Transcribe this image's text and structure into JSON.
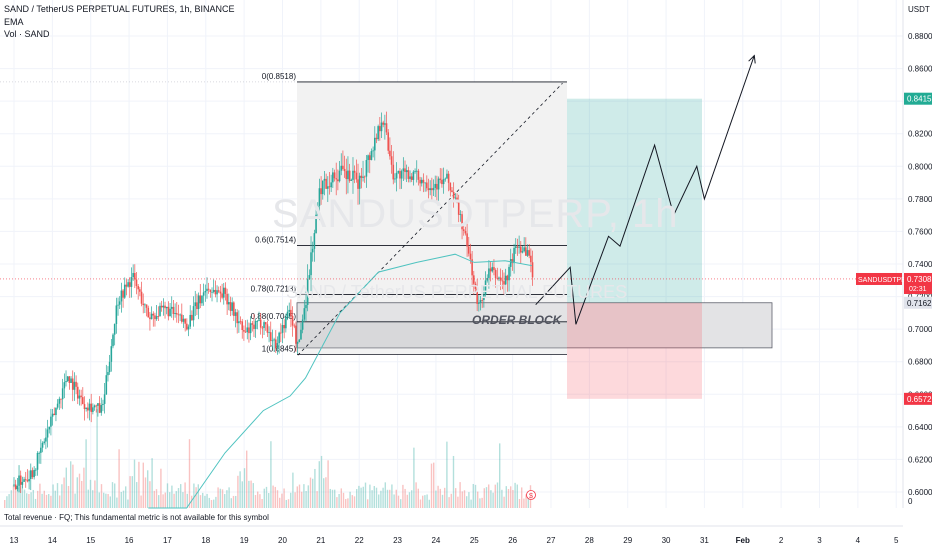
{
  "header": {
    "symbol_line": "SAND / TetherUS PERPETUAL FUTURES, 1h, BINANCE",
    "indicator_1": "EMA",
    "indicator_2": "Vol · SAND"
  },
  "watermark": {
    "ticker": "SANDUSDTPERP, 1h",
    "name": "SAND / TetherUS PERPETUAL FUTURES"
  },
  "footer_note": "Total revenue · FQ; This fundamental metric is not available for this symbol",
  "colors": {
    "up": "#26a69a",
    "down": "#ef5350",
    "ema": "#4fc3c0",
    "price_tag": "#f23645",
    "target_tag": "#22ab94",
    "stop_tag": "#f23645"
  },
  "price_axis": {
    "unit": "USDT",
    "ticks": [
      "0.8800",
      "0.8600",
      "0.8400",
      "0.8200",
      "0.8000",
      "0.7800",
      "0.7600",
      "0.7400",
      "0.7200",
      "0.7000",
      "0.6800",
      "0.6600",
      "0.6400",
      "0.6200",
      "0.6000"
    ],
    "bottom_label": "0"
  },
  "time_axis": {
    "labels": [
      "13",
      "14",
      "15",
      "16",
      "17",
      "18",
      "19",
      "20",
      "21",
      "22",
      "23",
      "24",
      "25",
      "26",
      "27",
      "28",
      "29",
      "30",
      "31",
      "Feb",
      "2",
      "3",
      "4",
      "5"
    ]
  },
  "tags": {
    "target": "0.8415",
    "current_symbol": "SANDUSDTPERP",
    "current_price": "0.7308",
    "countdown": "02:31",
    "entry": "0.7162",
    "stop": "0.6572"
  },
  "fib": [
    {
      "label": "0(0.8518)",
      "price": 0.8518
    },
    {
      "label": "0.6(0.7514)",
      "price": 0.7514
    },
    {
      "label": "0.78(0.7213)",
      "price": 0.7213
    },
    {
      "label": "0.88(0.7045)",
      "price": 0.7045
    },
    {
      "label": "1(0.6845)",
      "price": 0.6845
    }
  ],
  "order_block_label": "ORDER BLOCK",
  "chart_data": {
    "type": "candlestick",
    "symbol": "SANDUSDTPERP",
    "timeframe": "1h",
    "ylim": [
      0.592,
      0.894
    ],
    "x_range": [
      "13",
      "5"
    ],
    "grid": true,
    "position": {
      "entry": 0.7162,
      "target": 0.8415,
      "stop": 0.6572
    },
    "order_block": {
      "top": 0.7162,
      "bottom": 0.6885
    },
    "price_path_anchors": [
      {
        "x": 13.0,
        "y": 0.604
      },
      {
        "x": 13.5,
        "y": 0.613
      },
      {
        "x": 14.0,
        "y": 0.645
      },
      {
        "x": 14.4,
        "y": 0.672
      },
      {
        "x": 14.8,
        "y": 0.655
      },
      {
        "x": 15.3,
        "y": 0.65
      },
      {
        "x": 15.7,
        "y": 0.718
      },
      {
        "x": 16.1,
        "y": 0.732
      },
      {
        "x": 16.5,
        "y": 0.708
      },
      {
        "x": 17.0,
        "y": 0.712
      },
      {
        "x": 17.5,
        "y": 0.703
      },
      {
        "x": 18.0,
        "y": 0.725
      },
      {
        "x": 18.5,
        "y": 0.722
      },
      {
        "x": 19.0,
        "y": 0.697
      },
      {
        "x": 19.5,
        "y": 0.705
      },
      {
        "x": 19.8,
        "y": 0.69
      },
      {
        "x": 20.2,
        "y": 0.712
      },
      {
        "x": 20.4,
        "y": 0.688
      },
      {
        "x": 20.6,
        "y": 0.718
      },
      {
        "x": 20.8,
        "y": 0.755
      },
      {
        "x": 21.0,
        "y": 0.788
      },
      {
        "x": 21.5,
        "y": 0.796
      },
      {
        "x": 22.0,
        "y": 0.79
      },
      {
        "x": 22.4,
        "y": 0.815
      },
      {
        "x": 22.6,
        "y": 0.832
      },
      {
        "x": 22.9,
        "y": 0.795
      },
      {
        "x": 23.4,
        "y": 0.795
      },
      {
        "x": 23.9,
        "y": 0.788
      },
      {
        "x": 24.3,
        "y": 0.792
      },
      {
        "x": 24.6,
        "y": 0.772
      },
      {
        "x": 24.9,
        "y": 0.742
      },
      {
        "x": 25.1,
        "y": 0.712
      },
      {
        "x": 25.4,
        "y": 0.736
      },
      {
        "x": 25.8,
        "y": 0.728
      },
      {
        "x": 26.1,
        "y": 0.752
      },
      {
        "x": 26.4,
        "y": 0.748
      },
      {
        "x": 26.55,
        "y": 0.731
      }
    ],
    "ema_path": [
      {
        "x": 16.5,
        "y": 0.56
      },
      {
        "x": 17.5,
        "y": 0.59
      },
      {
        "x": 18.5,
        "y": 0.624
      },
      {
        "x": 19.5,
        "y": 0.65
      },
      {
        "x": 20.2,
        "y": 0.659
      },
      {
        "x": 20.6,
        "y": 0.67
      },
      {
        "x": 21.5,
        "y": 0.71
      },
      {
        "x": 22.5,
        "y": 0.735
      },
      {
        "x": 23.5,
        "y": 0.741
      },
      {
        "x": 24.5,
        "y": 0.746
      },
      {
        "x": 25.0,
        "y": 0.741
      },
      {
        "x": 25.8,
        "y": 0.742
      },
      {
        "x": 26.5,
        "y": 0.739
      }
    ],
    "projection": [
      {
        "x": 26.6,
        "y": 0.715
      },
      {
        "x": 27.5,
        "y": 0.738
      },
      {
        "x": 27.65,
        "y": 0.703
      },
      {
        "x": 28.5,
        "y": 0.757
      },
      {
        "x": 28.8,
        "y": 0.751
      },
      {
        "x": 29.7,
        "y": 0.813
      },
      {
        "x": 30.2,
        "y": 0.77
      },
      {
        "x": 30.8,
        "y": 0.8
      },
      {
        "x": 31.0,
        "y": 0.78
      },
      {
        "x": 32.3,
        "y": 0.868
      }
    ],
    "fib_dotted_trend": [
      {
        "x": 20.4,
        "y": 0.684
      },
      {
        "x": 27.3,
        "y": 0.851
      }
    ]
  }
}
